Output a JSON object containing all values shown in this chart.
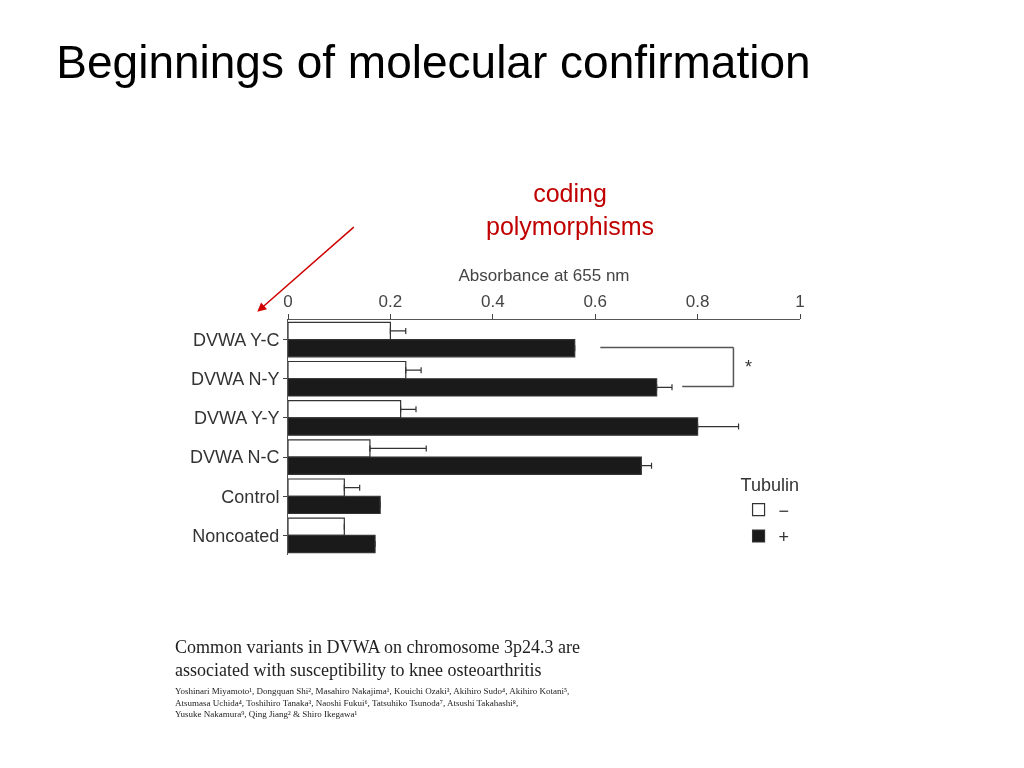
{
  "chart_data": {
    "type": "bar",
    "orientation": "horizontal",
    "title": "Beginnings of molecular confirmation",
    "xlabel": "Absorbance at 655 nm",
    "categories": [
      "DVWA Y-C",
      "DVWA N-Y",
      "DVWA Y-Y",
      "DVWA N-C",
      "Control",
      "Noncoated"
    ],
    "series": [
      {
        "name": "−",
        "color": "#ffffff",
        "values": [
          0.2,
          0.23,
          0.22,
          0.16,
          0.11,
          0.11
        ],
        "errors": [
          [
            0.2,
            0.23
          ],
          [
            0.23,
            0.26
          ],
          [
            0.22,
            0.25
          ],
          [
            0.16,
            0.27
          ],
          [
            0.11,
            0.14
          ],
          null
        ]
      },
      {
        "name": "+",
        "color": "#1a1a1a",
        "values": [
          0.56,
          0.72,
          0.8,
          0.69,
          0.18,
          0.17
        ],
        "errors": [
          null,
          [
            0.72,
            0.75
          ],
          [
            0.8,
            0.88
          ],
          [
            0.69,
            0.71
          ],
          null,
          null
        ]
      }
    ],
    "legend_title": "Tubulin",
    "legend": "bottom right",
    "xlim": [
      0,
      1
    ],
    "xticks": [
      0,
      0.2,
      0.4,
      0.6,
      0.8,
      1
    ],
    "annotations": [
      "coding\npolymorphisms",
      "*",
      "Common variants in DVWA on chromosome 3p24.3 are\nassociated with susceptibility to knee osteoarthritis",
      "Yoshinari Miyamoto¹, Dongquan Shi², Masahiro Nakajima¹, Kouichi Ozaki³, Akihiro Sudo⁴, Akihiro Kotani⁵,\nAtsumasa Uchida⁴, Toshihiro Tanaka³, Naoshi Fukui⁶, Tatsuhiko Tsunoda⁷, Atsushi Takahashi⁸,\nYusuke Nakamura⁹, Qing Jiang² & Shiro Ikegawa¹"
    ]
  }
}
